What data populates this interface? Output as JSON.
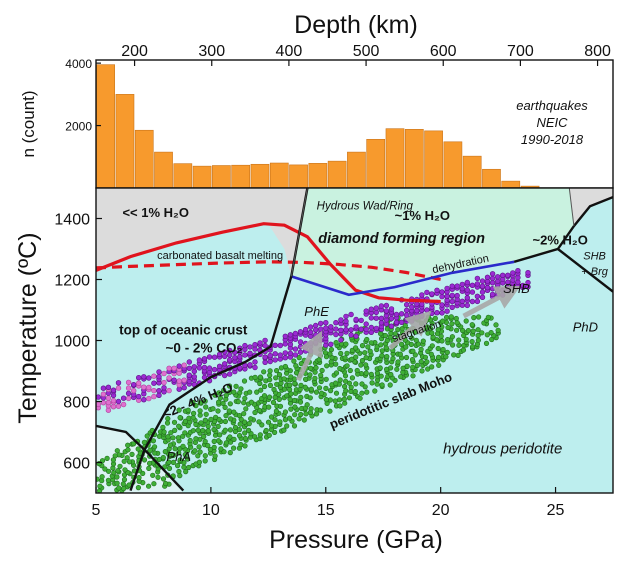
{
  "chart_data": [
    {
      "type": "bar",
      "title": "Depth (km)",
      "ylabel": "n (count)",
      "x_range": [
        150,
        820
      ],
      "x_ticks": [
        200,
        300,
        400,
        500,
        600,
        700,
        800
      ],
      "y_ticks": [
        2000,
        4000
      ],
      "ylim": [
        0,
        4100
      ],
      "bin_width": 25,
      "bar_color": "#f79a2d",
      "annotation": [
        "earthquakes",
        "NEIC",
        "1990-2018"
      ],
      "bins": [
        {
          "x": 150,
          "value": 3950
        },
        {
          "x": 175,
          "value": 3000
        },
        {
          "x": 200,
          "value": 1850
        },
        {
          "x": 225,
          "value": 1150
        },
        {
          "x": 250,
          "value": 780
        },
        {
          "x": 275,
          "value": 700
        },
        {
          "x": 300,
          "value": 720
        },
        {
          "x": 325,
          "value": 730
        },
        {
          "x": 350,
          "value": 760
        },
        {
          "x": 375,
          "value": 800
        },
        {
          "x": 400,
          "value": 740
        },
        {
          "x": 425,
          "value": 790
        },
        {
          "x": 450,
          "value": 860
        },
        {
          "x": 475,
          "value": 1150
        },
        {
          "x": 500,
          "value": 1560
        },
        {
          "x": 525,
          "value": 1900
        },
        {
          "x": 550,
          "value": 1880
        },
        {
          "x": 575,
          "value": 1830
        },
        {
          "x": 600,
          "value": 1480
        },
        {
          "x": 625,
          "value": 1020
        },
        {
          "x": 650,
          "value": 600
        },
        {
          "x": 675,
          "value": 220
        },
        {
          "x": 700,
          "value": 60
        }
      ]
    },
    {
      "type": "phase-diagram",
      "xlabel": "Pressure (GPa)",
      "ylabel": "Temperature (ºC)",
      "xlim": [
        5,
        27.5
      ],
      "ylim": [
        500,
        1500
      ],
      "x_ticks": [
        5,
        10,
        15,
        20,
        25
      ],
      "y_ticks": [
        600,
        800,
        1000,
        1200,
        1400
      ],
      "colors": {
        "hydrous_peridotite": "#bdeeee",
        "diamond_region": "#c9f2e0",
        "dry_gray": "#dcdcdc",
        "melting_curve": "#e0141e",
        "dehydration_curve": "#2a2acb",
        "slab_moho": "#2e9a27",
        "slab_top_purple": "#9b2ad3",
        "slab_top_pink": "#e070d0",
        "arrows": "#a8a8a8"
      },
      "region_labels": [
        {
          "text": "<< 1% H₂O",
          "x": 7.6,
          "y": 1405
        },
        {
          "text": "Hydrous Wad/Ring",
          "x": 16.7,
          "y": 1430
        },
        {
          "text": "~1% H₂O",
          "x": 19.2,
          "y": 1395
        },
        {
          "text": "diamond forming region",
          "x": 18.3,
          "y": 1320
        },
        {
          "text": "~2% H₂O",
          "x": 25.2,
          "y": 1315
        },
        {
          "text": "SHB",
          "x": 26.7,
          "y": 1265
        },
        {
          "text": "+ Brg",
          "x": 26.7,
          "y": 1215
        },
        {
          "text": "carbonated basalt melting",
          "x": 10.4,
          "y": 1267
        },
        {
          "text": "dehydration",
          "x": 20.9,
          "y": 1240
        },
        {
          "text": "PhE",
          "x": 14.6,
          "y": 1080
        },
        {
          "text": "SHB",
          "x": 23.3,
          "y": 1155
        },
        {
          "text": "PhD",
          "x": 26.3,
          "y": 1030
        },
        {
          "text": "stagnation",
          "x": 19.0,
          "y": 1020
        },
        {
          "text": "top of oceanic crust",
          "x": 8.8,
          "y": 1020
        },
        {
          "text": "~0 - 2% CO₂",
          "x": 9.7,
          "y": 960
        },
        {
          "text": "<2 - 4% H₂O",
          "x": 9.5,
          "y": 790
        },
        {
          "text": "peridotitic slab Moho",
          "x": 17.9,
          "y": 790
        },
        {
          "text": "hydrous peridotite",
          "x": 22.7,
          "y": 630
        },
        {
          "text": "PhA",
          "x": 8.6,
          "y": 605
        }
      ],
      "curves": {
        "carbonated_basalt_melting_solid": [
          [
            5,
            1230
          ],
          [
            6.5,
            1275
          ],
          [
            8.5,
            1320
          ],
          [
            10.5,
            1355
          ],
          [
            12.3,
            1383
          ],
          [
            13.2,
            1378
          ],
          [
            14.2,
            1340
          ],
          [
            15.2,
            1250
          ],
          [
            16.3,
            1165
          ],
          [
            17.3,
            1140
          ],
          [
            18.5,
            1132
          ],
          [
            20,
            1128
          ]
        ],
        "carbonated_basalt_melting_dashed": [
          [
            5,
            1238
          ],
          [
            6.5,
            1243
          ],
          [
            8.5,
            1249
          ],
          [
            10.5,
            1254
          ],
          [
            12.5,
            1258
          ],
          [
            14,
            1256
          ],
          [
            15.5,
            1250
          ],
          [
            17,
            1240
          ],
          [
            18.5,
            1223
          ],
          [
            20,
            1200
          ]
        ],
        "dehydration": [
          [
            13.5,
            1210
          ],
          [
            16,
            1150
          ],
          [
            18,
            1175
          ],
          [
            20.5,
            1222
          ],
          [
            23.2,
            1258
          ]
        ],
        "phase_boundary_main": [
          [
            6.5,
            508
          ],
          [
            7.1,
            640
          ],
          [
            8.2,
            790
          ],
          [
            10,
            880
          ],
          [
            11.5,
            930
          ],
          [
            12.6,
            980
          ],
          [
            13.5,
            1210
          ],
          [
            14.2,
            1500
          ]
        ],
        "phase_boundary_left": [
          [
            5,
            720
          ],
          [
            6.3,
            700
          ],
          [
            7.2,
            635
          ],
          [
            8.8,
            508
          ]
        ],
        "phase_boundary_right": [
          [
            23.2,
            1258
          ],
          [
            25.1,
            1300
          ],
          [
            25.8,
            1375
          ],
          [
            26.5,
            1440
          ],
          [
            27.5,
            1470
          ]
        ],
        "phase_boundary_upper_right": [
          [
            23.2,
            1258
          ],
          [
            25.1,
            1300
          ],
          [
            27.5,
            1160
          ]
        ],
        "phase_boundary_wadsleyite_right": [
          [
            25.8,
            1375
          ],
          [
            25.6,
            1500
          ]
        ]
      }
    }
  ]
}
